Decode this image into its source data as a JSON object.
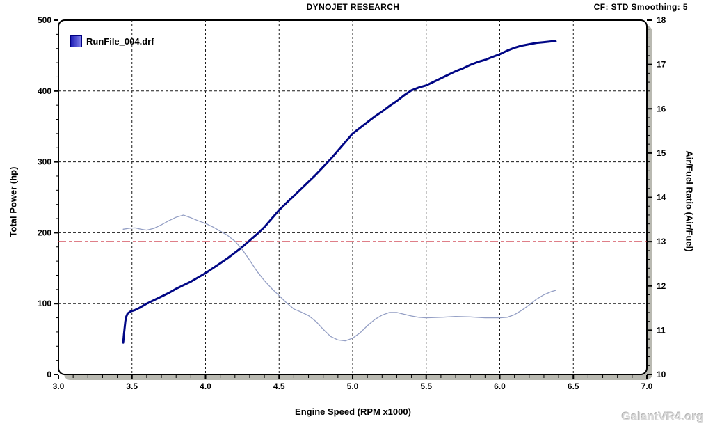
{
  "header": {
    "title": "DYNOJET RESEARCH",
    "info": "CF: STD  Smoothing: 5"
  },
  "legend": {
    "label": "RunFile_004.drf",
    "swatch_color_left": "#1c1cb4",
    "swatch_color_right": "#8484ee"
  },
  "watermark": "GalantVR4.org",
  "chart_data": {
    "type": "line",
    "title": "DYNOJET RESEARCH",
    "xlabel": "Engine Speed (RPM x1000)",
    "ylabel_left": "Total Power (hp)",
    "ylabel_right": "Air/Fuel Ratio (Air/Fuel)",
    "xlim": [
      3.0,
      7.0
    ],
    "ylim_left": [
      0,
      500
    ],
    "ylim_right": [
      10,
      18
    ],
    "x_major": 0.5,
    "x_minor": 0.1,
    "y_major_left": 100,
    "y_minor_left": 20,
    "y_major_right": 1,
    "y_minor_right": 0.2,
    "x_ticks": [
      "3.0",
      "3.5",
      "4.0",
      "4.5",
      "5.0",
      "5.5",
      "6.0",
      "6.5",
      "7.0"
    ],
    "y_ticks_left": [
      "0",
      "100",
      "200",
      "300",
      "400",
      "500"
    ],
    "y_ticks_right": [
      "10",
      "11",
      "12",
      "13",
      "14",
      "15",
      "16",
      "17",
      "18"
    ],
    "grid": true,
    "colors": {
      "grid": "#1a1a1a",
      "frame": "#000000",
      "shadow": "#b9b9b1",
      "background": "#ffffff"
    },
    "reference_line": {
      "axis": "right",
      "value": 13.0,
      "color": "#cc3340",
      "style": "dash-dot"
    },
    "series": [
      {
        "name": "RunFile_004.drf - Total Power (hp)",
        "axis": "left",
        "color": "#000685",
        "width": 3,
        "points": [
          [
            3.44,
            45
          ],
          [
            3.445,
            56
          ],
          [
            3.45,
            66
          ],
          [
            3.455,
            75
          ],
          [
            3.46,
            81
          ],
          [
            3.47,
            86
          ],
          [
            3.49,
            89
          ],
          [
            3.52,
            91
          ],
          [
            3.55,
            94
          ],
          [
            3.6,
            100
          ],
          [
            3.65,
            105
          ],
          [
            3.7,
            110
          ],
          [
            3.75,
            115
          ],
          [
            3.8,
            121
          ],
          [
            3.85,
            126
          ],
          [
            3.9,
            131
          ],
          [
            3.95,
            137
          ],
          [
            4.0,
            143
          ],
          [
            4.05,
            150
          ],
          [
            4.1,
            157
          ],
          [
            4.15,
            164
          ],
          [
            4.2,
            172
          ],
          [
            4.25,
            180
          ],
          [
            4.3,
            189
          ],
          [
            4.35,
            198
          ],
          [
            4.4,
            208
          ],
          [
            4.45,
            220
          ],
          [
            4.5,
            232
          ],
          [
            4.55,
            242
          ],
          [
            4.6,
            252
          ],
          [
            4.65,
            262
          ],
          [
            4.7,
            272
          ],
          [
            4.75,
            282
          ],
          [
            4.8,
            293
          ],
          [
            4.85,
            304
          ],
          [
            4.9,
            316
          ],
          [
            4.95,
            328
          ],
          [
            5.0,
            340
          ],
          [
            5.05,
            348
          ],
          [
            5.1,
            356
          ],
          [
            5.15,
            364
          ],
          [
            5.2,
            371
          ],
          [
            5.25,
            379
          ],
          [
            5.3,
            386
          ],
          [
            5.35,
            394
          ],
          [
            5.4,
            401
          ],
          [
            5.45,
            405
          ],
          [
            5.5,
            408
          ],
          [
            5.55,
            413
          ],
          [
            5.6,
            418
          ],
          [
            5.65,
            423
          ],
          [
            5.7,
            428
          ],
          [
            5.75,
            432
          ],
          [
            5.8,
            437
          ],
          [
            5.85,
            441
          ],
          [
            5.9,
            444
          ],
          [
            5.95,
            448
          ],
          [
            6.0,
            452
          ],
          [
            6.05,
            457
          ],
          [
            6.1,
            461
          ],
          [
            6.15,
            464
          ],
          [
            6.2,
            466
          ],
          [
            6.25,
            468
          ],
          [
            6.3,
            469
          ],
          [
            6.35,
            470
          ],
          [
            6.38,
            470
          ]
        ]
      },
      {
        "name": "RunFile_004.drf - Air/Fuel Ratio",
        "axis": "right",
        "color": "#939ec4",
        "width": 1.3,
        "points": [
          [
            3.44,
            13.28
          ],
          [
            3.48,
            13.3
          ],
          [
            3.52,
            13.31
          ],
          [
            3.56,
            13.28
          ],
          [
            3.6,
            13.26
          ],
          [
            3.65,
            13.3
          ],
          [
            3.7,
            13.38
          ],
          [
            3.75,
            13.47
          ],
          [
            3.8,
            13.55
          ],
          [
            3.85,
            13.6
          ],
          [
            3.9,
            13.54
          ],
          [
            3.95,
            13.47
          ],
          [
            4.0,
            13.41
          ],
          [
            4.05,
            13.33
          ],
          [
            4.1,
            13.24
          ],
          [
            4.15,
            13.14
          ],
          [
            4.2,
            13.01
          ],
          [
            4.25,
            12.82
          ],
          [
            4.3,
            12.58
          ],
          [
            4.35,
            12.33
          ],
          [
            4.4,
            12.12
          ],
          [
            4.45,
            11.94
          ],
          [
            4.5,
            11.78
          ],
          [
            4.55,
            11.62
          ],
          [
            4.6,
            11.48
          ],
          [
            4.65,
            11.41
          ],
          [
            4.7,
            11.33
          ],
          [
            4.75,
            11.2
          ],
          [
            4.8,
            11.02
          ],
          [
            4.85,
            10.86
          ],
          [
            4.9,
            10.78
          ],
          [
            4.95,
            10.76
          ],
          [
            5.0,
            10.82
          ],
          [
            5.05,
            10.94
          ],
          [
            5.1,
            11.1
          ],
          [
            5.15,
            11.24
          ],
          [
            5.2,
            11.34
          ],
          [
            5.25,
            11.4
          ],
          [
            5.3,
            11.4
          ],
          [
            5.35,
            11.36
          ],
          [
            5.4,
            11.32
          ],
          [
            5.45,
            11.29
          ],
          [
            5.5,
            11.28
          ],
          [
            5.6,
            11.29
          ],
          [
            5.7,
            11.31
          ],
          [
            5.8,
            11.3
          ],
          [
            5.9,
            11.28
          ],
          [
            6.0,
            11.28
          ],
          [
            6.05,
            11.29
          ],
          [
            6.1,
            11.35
          ],
          [
            6.15,
            11.45
          ],
          [
            6.2,
            11.57
          ],
          [
            6.25,
            11.7
          ],
          [
            6.3,
            11.8
          ],
          [
            6.35,
            11.87
          ],
          [
            6.38,
            11.9
          ]
        ]
      }
    ]
  }
}
